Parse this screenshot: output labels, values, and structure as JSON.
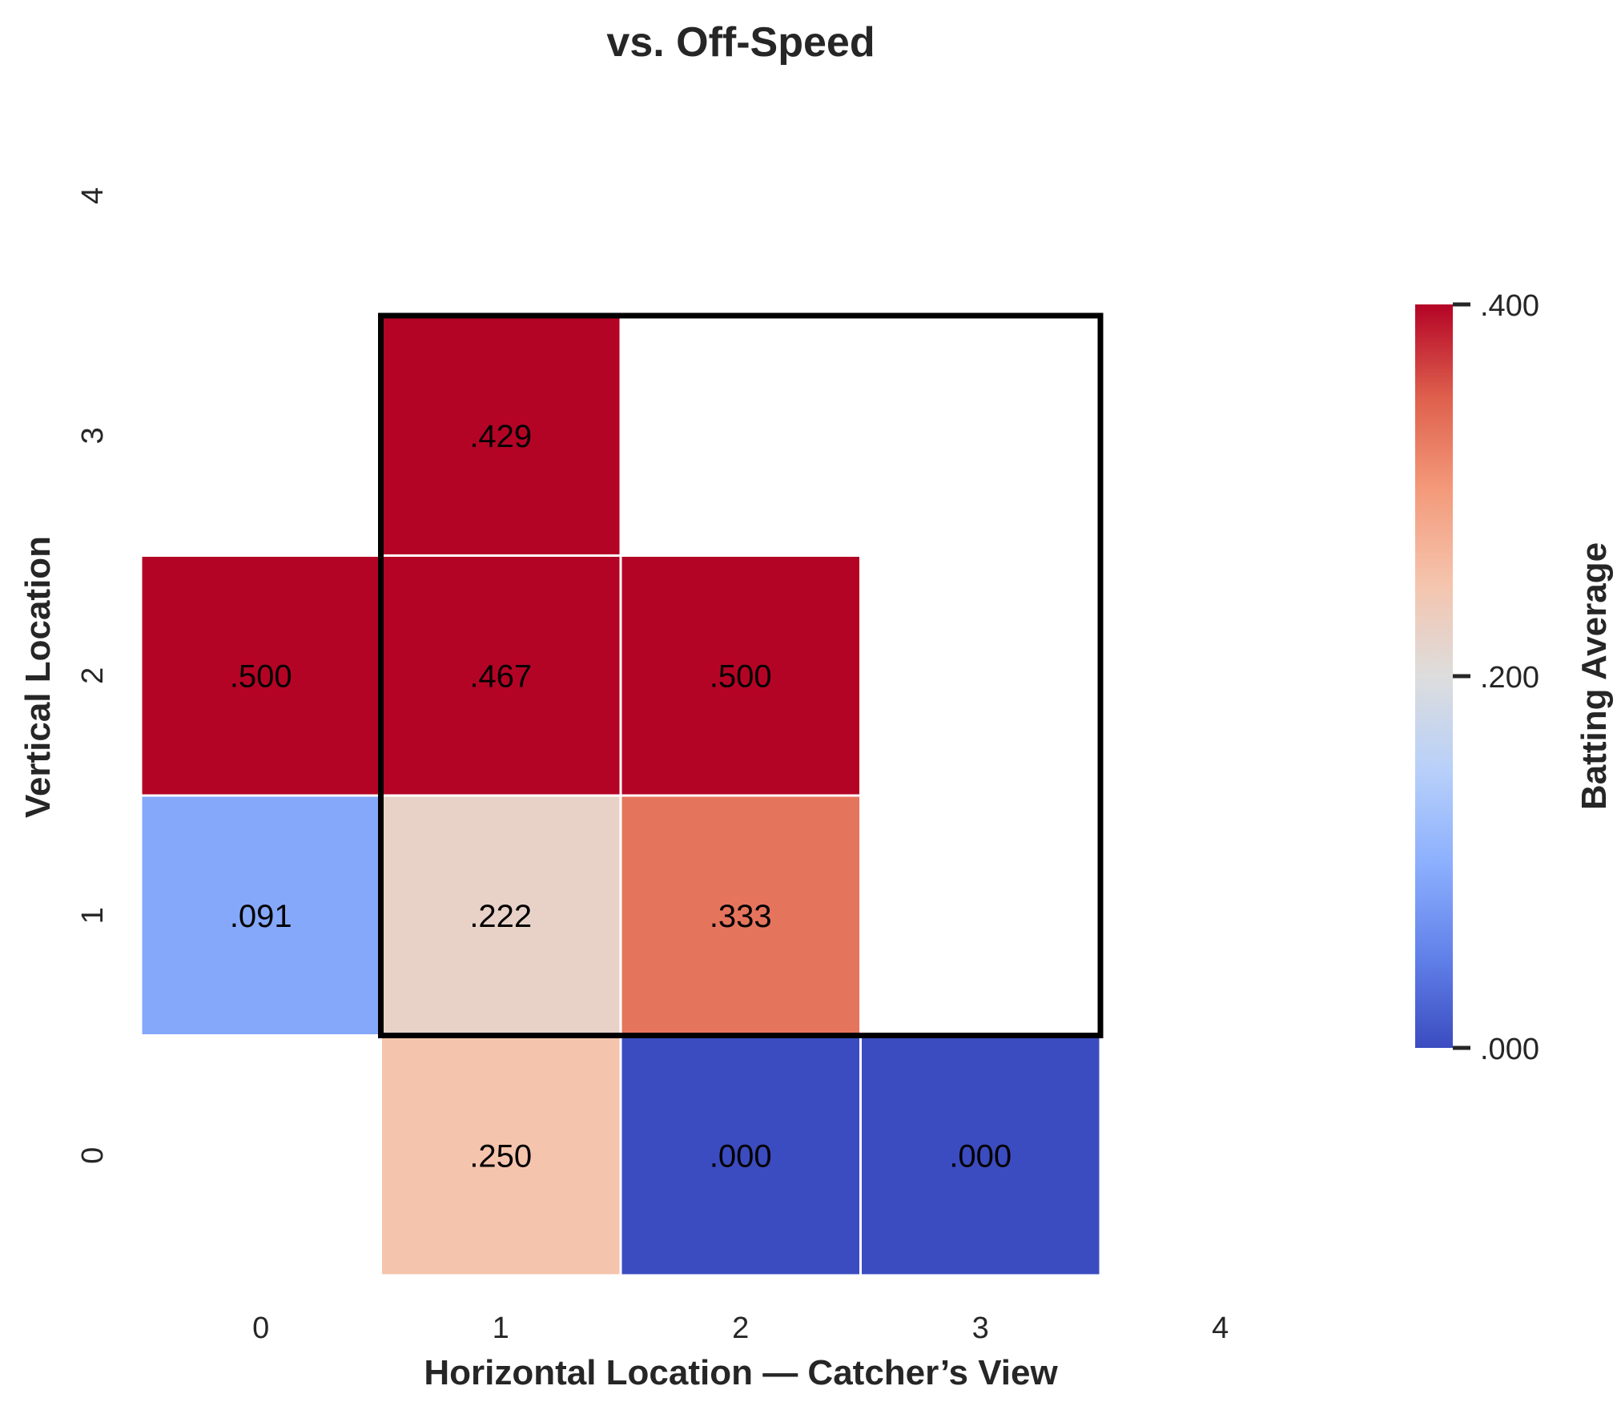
{
  "chart_data": {
    "type": "heatmap",
    "title": "vs. Off-Speed",
    "xlabel": "Horizontal Location — Catcher’s View",
    "ylabel": "Vertical Location",
    "x_ticks": [
      "0",
      "1",
      "2",
      "3",
      "4"
    ],
    "y_ticks": [
      "0",
      "1",
      "2",
      "3",
      "4"
    ],
    "colormap": "coolwarm",
    "vmin": 0.0,
    "vmax": 0.4,
    "colorbar": {
      "label": "Batting Average",
      "ticks": [
        0.0,
        0.2,
        0.4
      ],
      "tick_labels": [
        ".000",
        ".200",
        ".400"
      ]
    },
    "strike_zone": {
      "x_range": [
        1,
        3
      ],
      "y_range": [
        1,
        3
      ]
    },
    "cells": [
      {
        "x": 1,
        "y": 3,
        "value": 0.429,
        "label": ".429"
      },
      {
        "x": 0,
        "y": 2,
        "value": 0.5,
        "label": ".500"
      },
      {
        "x": 1,
        "y": 2,
        "value": 0.467,
        "label": ".467"
      },
      {
        "x": 2,
        "y": 2,
        "value": 0.5,
        "label": ".500"
      },
      {
        "x": 0,
        "y": 1,
        "value": 0.091,
        "label": ".091"
      },
      {
        "x": 1,
        "y": 1,
        "value": 0.222,
        "label": ".222"
      },
      {
        "x": 2,
        "y": 1,
        "value": 0.333,
        "label": ".333"
      },
      {
        "x": 1,
        "y": 0,
        "value": 0.25,
        "label": ".250"
      },
      {
        "x": 2,
        "y": 0,
        "value": 0.0,
        "label": ".000"
      },
      {
        "x": 3,
        "y": 0,
        "value": 0.0,
        "label": ".000"
      }
    ],
    "grid": false,
    "legend": "colorbar-right"
  }
}
